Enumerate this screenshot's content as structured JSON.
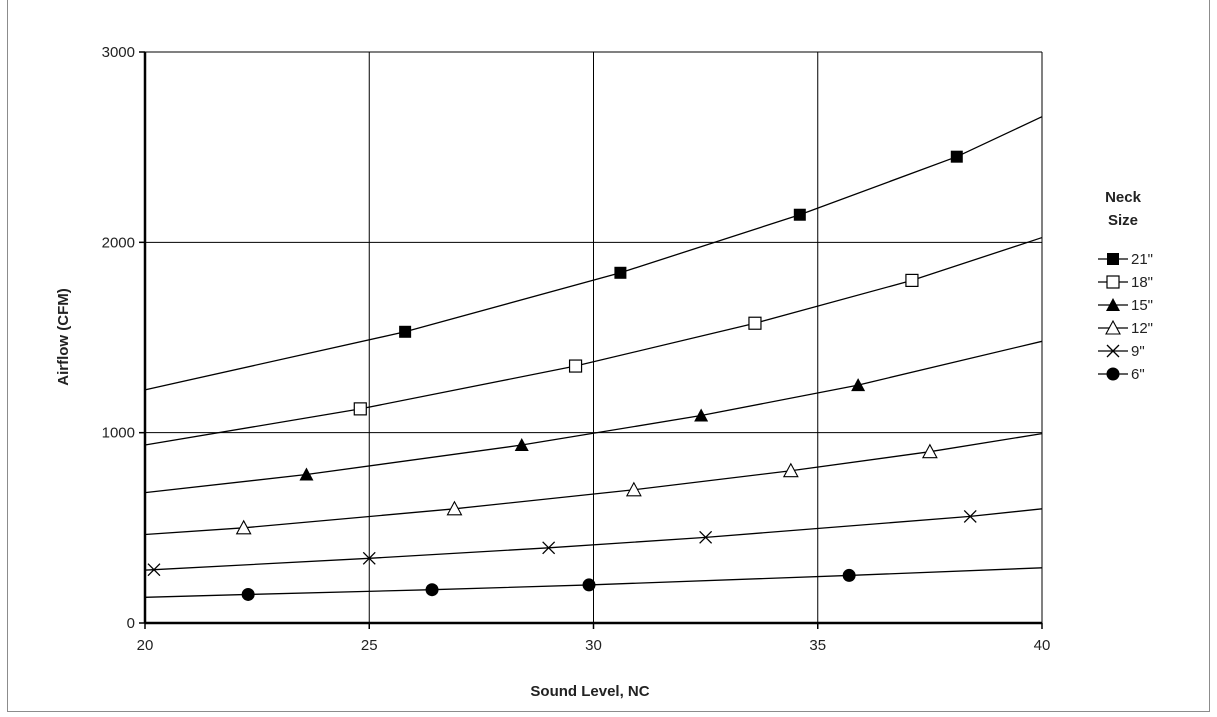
{
  "chart_data": {
    "type": "line",
    "title": "",
    "xlabel": "Sound Level, NC",
    "ylabel": "Airflow (CFM)",
    "xlim": [
      20,
      40
    ],
    "ylim": [
      0,
      3000
    ],
    "x_ticks": [
      20,
      25,
      30,
      35,
      40
    ],
    "y_ticks": [
      0,
      1000,
      2000,
      3000
    ],
    "grid": true,
    "legend": {
      "title_lines": [
        "Neck",
        "Size"
      ],
      "placement": "right"
    },
    "series": [
      {
        "name": "21\"",
        "marker": "filled-square",
        "points": [
          [
            25.8,
            1530
          ],
          [
            30.6,
            1840
          ],
          [
            34.6,
            2145
          ],
          [
            38.1,
            2450
          ]
        ],
        "line_from": [
          20.0,
          1225
        ],
        "line_to": [
          40.0,
          2660
        ]
      },
      {
        "name": "18\"",
        "marker": "open-square",
        "points": [
          [
            24.8,
            1125
          ],
          [
            29.6,
            1350
          ],
          [
            33.6,
            1575
          ],
          [
            37.1,
            1800
          ]
        ],
        "line_from": [
          20.0,
          935
        ],
        "line_to": [
          40.0,
          2025
        ]
      },
      {
        "name": "15\"",
        "marker": "filled-triangle",
        "points": [
          [
            23.6,
            780
          ],
          [
            28.4,
            935
          ],
          [
            32.4,
            1090
          ],
          [
            35.9,
            1250
          ]
        ],
        "line_from": [
          20.0,
          685
        ],
        "line_to": [
          40.0,
          1480
        ]
      },
      {
        "name": "12\"",
        "marker": "open-triangle",
        "points": [
          [
            22.2,
            500
          ],
          [
            26.9,
            600
          ],
          [
            30.9,
            700
          ],
          [
            34.4,
            800
          ],
          [
            37.5,
            900
          ]
        ],
        "line_from": [
          20.0,
          465
        ],
        "line_to": [
          40.0,
          995
        ]
      },
      {
        "name": "9\"",
        "marker": "x",
        "points": [
          [
            20.2,
            280
          ],
          [
            25.0,
            340
          ],
          [
            29.0,
            395
          ],
          [
            32.5,
            450
          ],
          [
            38.4,
            560
          ]
        ],
        "line_from": [
          20.0,
          278
        ],
        "line_to": [
          40.0,
          600
        ]
      },
      {
        "name": "6\"",
        "marker": "filled-circle",
        "points": [
          [
            22.3,
            150
          ],
          [
            26.4,
            175
          ],
          [
            29.9,
            200
          ],
          [
            35.7,
            250
          ]
        ],
        "line_from": [
          20.0,
          135
        ],
        "line_to": [
          40.0,
          290
        ]
      }
    ]
  }
}
